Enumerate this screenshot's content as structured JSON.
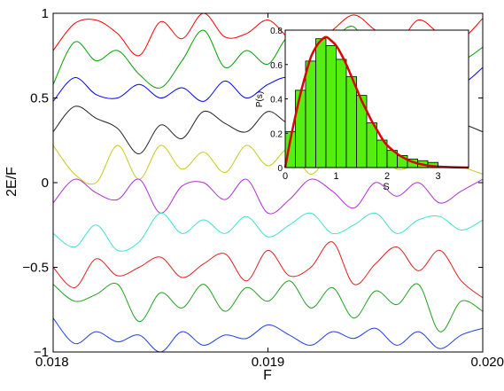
{
  "chart_data": [
    {
      "type": "line",
      "xlabel": "F",
      "ylabel": "2E/F",
      "xlim": [
        0.018,
        0.02
      ],
      "ylim": [
        -1,
        1
      ],
      "x_ticks": [
        "0.018",
        "0.019",
        "0.020"
      ],
      "y_ticks": [
        "−1",
        "−0.5",
        "0",
        "0.5",
        "1"
      ],
      "grid": false,
      "series": [
        {
          "color": "#ff0000",
          "x": [
            0.018,
            0.0181,
            0.0182,
            0.0183,
            0.0184,
            0.0185,
            0.0186,
            0.0187,
            0.0188,
            0.0189,
            0.019,
            0.0191,
            0.0192,
            0.0193,
            0.0194,
            0.0195,
            0.0196,
            0.0197,
            0.0198,
            0.0199,
            0.02
          ],
          "values": [
            0.78,
            0.94,
            0.96,
            0.88,
            0.75,
            0.95,
            0.85,
            1.0,
            0.86,
            0.88,
            0.96,
            0.85,
            0.8,
            0.9,
            0.99,
            0.9,
            0.82,
            0.96,
            0.88,
            0.85,
            0.97
          ]
        },
        {
          "color": "#00a000",
          "x": [
            0.018,
            0.0181,
            0.0182,
            0.0183,
            0.0184,
            0.0185,
            0.0186,
            0.0187,
            0.0188,
            0.0189,
            0.019,
            0.0191,
            0.0192,
            0.0193,
            0.0194,
            0.0195,
            0.0196,
            0.0197,
            0.0198,
            0.0199,
            0.02
          ],
          "values": [
            0.58,
            0.83,
            0.72,
            0.78,
            0.64,
            0.56,
            0.72,
            0.9,
            0.68,
            0.78,
            0.7,
            0.86,
            0.7,
            0.83,
            0.92,
            0.7,
            0.8,
            0.65,
            0.75,
            0.72,
            0.8
          ]
        },
        {
          "color": "#0000ff",
          "x": [
            0.018,
            0.0181,
            0.0182,
            0.0183,
            0.0184,
            0.0185,
            0.0186,
            0.0187,
            0.0188,
            0.0189,
            0.019,
            0.0191,
            0.0192,
            0.0193,
            0.0194,
            0.0195,
            0.0196,
            0.0197,
            0.0198,
            0.0199,
            0.02
          ],
          "values": [
            0.48,
            0.62,
            0.52,
            0.5,
            0.58,
            0.5,
            0.56,
            0.48,
            0.6,
            0.5,
            0.58,
            0.62,
            0.52,
            0.6,
            0.55,
            0.6,
            0.5,
            0.56,
            0.6,
            0.58,
            0.68
          ]
        },
        {
          "color": "#202020",
          "x": [
            0.018,
            0.0181,
            0.0182,
            0.0183,
            0.0184,
            0.0185,
            0.0186,
            0.0187,
            0.0188,
            0.0189,
            0.019,
            0.0191,
            0.0192,
            0.0193,
            0.0194,
            0.0195,
            0.0196,
            0.0197,
            0.0198,
            0.0199,
            0.02
          ],
          "values": [
            0.3,
            0.45,
            0.38,
            0.32,
            0.17,
            0.34,
            0.26,
            0.42,
            0.35,
            0.3,
            0.42,
            0.35,
            0.4,
            0.3,
            0.45,
            0.35,
            0.42,
            0.32,
            0.38,
            0.35,
            0.3
          ]
        },
        {
          "color": "#c8c820",
          "x": [
            0.018,
            0.0181,
            0.0182,
            0.0183,
            0.0184,
            0.0185,
            0.0186,
            0.0187,
            0.0188,
            0.0189,
            0.019,
            0.0191,
            0.0192,
            0.0193,
            0.0194,
            0.0195,
            0.0196,
            0.0197,
            0.0198,
            0.0199,
            0.02
          ],
          "values": [
            0.22,
            0.05,
            0.0,
            0.22,
            0.02,
            0.22,
            0.08,
            0.18,
            0.06,
            0.22,
            0.1,
            0.2,
            0.05,
            0.18,
            0.1,
            0.2,
            0.08,
            0.12,
            0.18,
            0.1,
            0.05
          ]
        },
        {
          "color": "#b030d0",
          "x": [
            0.018,
            0.0181,
            0.0182,
            0.0183,
            0.0184,
            0.0185,
            0.0186,
            0.0187,
            0.0188,
            0.0189,
            0.019,
            0.0191,
            0.0192,
            0.0193,
            0.0194,
            0.0195,
            0.0196,
            0.0197,
            0.0198,
            0.0199,
            0.02
          ],
          "values": [
            -0.12,
            0.02,
            -0.06,
            -0.1,
            0.02,
            -0.18,
            -0.02,
            0.0,
            -0.1,
            0.02,
            -0.18,
            -0.1,
            0.02,
            -0.05,
            -0.15,
            0.0,
            -0.08,
            0.0,
            -0.12,
            -0.05,
            0.02
          ]
        },
        {
          "color": "#40e0d0",
          "x": [
            0.018,
            0.0181,
            0.0182,
            0.0183,
            0.0184,
            0.0185,
            0.0186,
            0.0187,
            0.0188,
            0.0189,
            0.019,
            0.0191,
            0.0192,
            0.0193,
            0.0194,
            0.0195,
            0.0196,
            0.0197,
            0.0198,
            0.0199,
            0.02
          ],
          "values": [
            -0.3,
            -0.38,
            -0.25,
            -0.4,
            -0.35,
            -0.18,
            -0.3,
            -0.22,
            -0.3,
            -0.2,
            -0.32,
            -0.25,
            -0.18,
            -0.3,
            -0.25,
            -0.18,
            -0.3,
            -0.22,
            -0.2,
            -0.28,
            -0.22
          ]
        },
        {
          "color": "#e02020",
          "x": [
            0.018,
            0.0181,
            0.0182,
            0.0183,
            0.0184,
            0.0185,
            0.0186,
            0.0187,
            0.0188,
            0.0189,
            0.019,
            0.0191,
            0.0192,
            0.0193,
            0.0194,
            0.0195,
            0.0196,
            0.0197,
            0.0198,
            0.0199,
            0.02
          ],
          "values": [
            -0.5,
            -0.62,
            -0.45,
            -0.55,
            -0.5,
            -0.44,
            -0.56,
            -0.48,
            -0.42,
            -0.58,
            -0.4,
            -0.55,
            -0.5,
            -0.35,
            -0.6,
            -0.48,
            -0.38,
            -0.52,
            -0.4,
            -0.58,
            -0.68
          ]
        },
        {
          "color": "#20a020",
          "x": [
            0.018,
            0.0181,
            0.0182,
            0.0183,
            0.0184,
            0.0185,
            0.0186,
            0.0187,
            0.0188,
            0.0189,
            0.019,
            0.0191,
            0.0192,
            0.0193,
            0.0194,
            0.0195,
            0.0196,
            0.0197,
            0.0198,
            0.0199,
            0.02
          ],
          "values": [
            -0.6,
            -0.7,
            -0.66,
            -0.6,
            -0.82,
            -0.65,
            -0.74,
            -0.6,
            -0.76,
            -0.62,
            -0.7,
            -0.58,
            -0.74,
            -0.62,
            -0.8,
            -0.64,
            -0.72,
            -0.6,
            -0.88,
            -0.7,
            -0.76
          ]
        },
        {
          "color": "#2040e0",
          "x": [
            0.018,
            0.0181,
            0.0182,
            0.0183,
            0.0184,
            0.0185,
            0.0186,
            0.0187,
            0.0188,
            0.0189,
            0.019,
            0.0191,
            0.0192,
            0.0193,
            0.0194,
            0.0195,
            0.0196,
            0.0197,
            0.0198,
            0.0199,
            0.02
          ],
          "values": [
            -0.8,
            -0.95,
            -0.88,
            -0.94,
            -0.9,
            -1.0,
            -0.88,
            -0.96,
            -0.9,
            -0.92,
            -0.84,
            -0.9,
            -0.96,
            -0.88,
            -0.92,
            -0.86,
            -0.96,
            -0.88,
            -0.98,
            -0.9,
            -0.86
          ]
        }
      ]
    },
    {
      "type": "bar",
      "inset": true,
      "xlabel": "S",
      "ylabel": "P(s)",
      "xlim": [
        0,
        3.6
      ],
      "ylim": [
        0,
        0.8
      ],
      "x_ticks": [
        "0",
        "1",
        "2",
        "3"
      ],
      "y_ticks": [
        "0",
        "0.2",
        "0.4",
        "0.6",
        "0.8"
      ],
      "bar_color": "#55ee11",
      "curve_color": "#dd0000",
      "bin_width": 0.2,
      "bins_left": [
        0.0,
        0.2,
        0.4,
        0.6,
        0.8,
        1.0,
        1.2,
        1.4,
        1.6,
        1.8,
        2.0,
        2.2,
        2.4,
        2.6,
        2.8
      ],
      "values": [
        0.21,
        0.45,
        0.62,
        0.75,
        0.71,
        0.63,
        0.53,
        0.42,
        0.26,
        0.16,
        0.1,
        0.07,
        0.05,
        0.04,
        0.03
      ],
      "curve": {
        "label": "",
        "x": [
          0.0,
          0.1,
          0.2,
          0.3,
          0.4,
          0.5,
          0.6,
          0.7,
          0.8,
          0.9,
          1.0,
          1.1,
          1.2,
          1.3,
          1.4,
          1.5,
          1.6,
          1.7,
          1.8,
          1.9,
          2.0,
          2.2,
          2.4,
          2.6,
          2.8,
          3.0,
          3.2,
          3.4,
          3.6
        ],
        "y": [
          0.0,
          0.16,
          0.3,
          0.43,
          0.54,
          0.64,
          0.7,
          0.74,
          0.76,
          0.74,
          0.71,
          0.66,
          0.6,
          0.53,
          0.46,
          0.39,
          0.33,
          0.27,
          0.22,
          0.17,
          0.13,
          0.08,
          0.045,
          0.024,
          0.012,
          0.006,
          0.003,
          0.001,
          0.0
        ]
      }
    }
  ]
}
